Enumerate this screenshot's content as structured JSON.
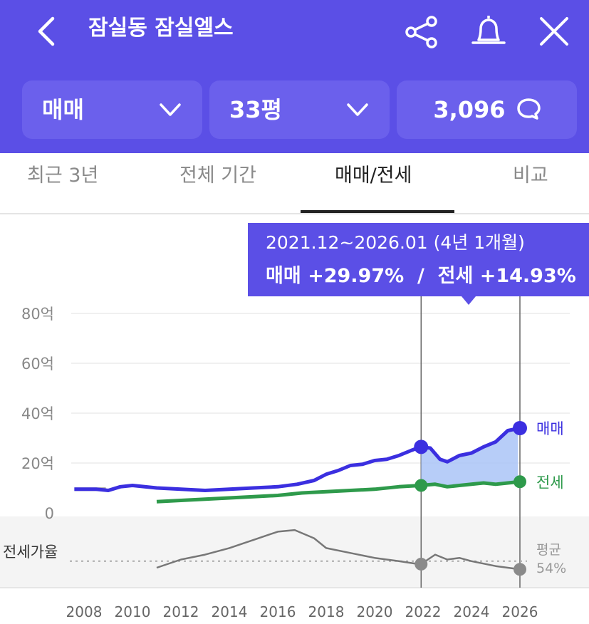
{
  "header": {
    "title": "잠실동 잠실엘스",
    "back_icon": "chevron-left-icon",
    "share_icon": "share-icon",
    "bell_icon": "bell-icon",
    "close_icon": "close-icon",
    "bg_color": "#5b4fe6"
  },
  "selectors": {
    "trade_type": "매매",
    "size": "33평",
    "comment_count": "3,096",
    "comment_icon": "speech-bubble-icon"
  },
  "tabs": [
    {
      "label": "최근 3년",
      "active": false
    },
    {
      "label": "전체 기간",
      "active": false
    },
    {
      "label": "매매/전세",
      "active": true
    },
    {
      "label": "비교",
      "active": false
    }
  ],
  "tooltip": {
    "period": "2021.12~2026.01 (4년 1개월)",
    "change": "매매 +29.97%  /  전세 +14.93%"
  },
  "chart_data": {
    "type": "line",
    "x_ticks": [
      "2008",
      "2010",
      "2012",
      "2014",
      "2016",
      "2018",
      "2020",
      "2022",
      "2024",
      "2026"
    ],
    "y_ticks": [
      "0",
      "20억",
      "40억",
      "60억",
      "80억"
    ],
    "ylim": [
      0,
      80
    ],
    "y_unit": "억",
    "grid": true,
    "series": [
      {
        "name": "매매",
        "color": "#3b2fe0",
        "x": [
          2007.6,
          2008.5,
          2009.0,
          2009.5,
          2010.0,
          2011.0,
          2012.0,
          2013.0,
          2014.0,
          2015.0,
          2016.0,
          2016.8,
          2017.5,
          2018.0,
          2018.5,
          2019.0,
          2019.5,
          2020.0,
          2020.5,
          2021.0,
          2021.5,
          2021.9,
          2022.3,
          2022.7,
          2023.0,
          2023.5,
          2024.0,
          2024.5,
          2025.0,
          2025.5,
          2026.0
        ],
        "values": [
          9.5,
          9.5,
          9.0,
          10.5,
          11.0,
          10.0,
          9.5,
          9.0,
          9.5,
          10.0,
          10.5,
          11.5,
          13.0,
          15.5,
          17.0,
          19.0,
          19.5,
          21.0,
          21.5,
          23.0,
          25.0,
          26.5,
          26.0,
          21.5,
          20.5,
          23.0,
          24.0,
          26.5,
          28.5,
          33.0,
          34.0
        ]
      },
      {
        "name": "전세",
        "color": "#2e9a4b",
        "x": [
          2011.0,
          2012.0,
          2013.0,
          2014.0,
          2015.0,
          2016.0,
          2017.0,
          2018.0,
          2019.0,
          2020.0,
          2021.0,
          2021.9,
          2022.5,
          2023.0,
          2023.5,
          2024.0,
          2024.5,
          2025.0,
          2025.5,
          2026.0
        ],
        "values": [
          4.5,
          5.0,
          5.5,
          6.0,
          6.5,
          7.0,
          8.0,
          8.5,
          9.0,
          9.5,
          10.5,
          11.0,
          11.5,
          10.5,
          11.0,
          11.5,
          12.0,
          11.5,
          12.0,
          12.5
        ]
      }
    ],
    "secondary_panel": {
      "label": "전세가율",
      "avg_label": "평균",
      "avg_value": "54%",
      "avg_pct": 54,
      "x": [
        2011.0,
        2012.0,
        2013.0,
        2014.0,
        2015.0,
        2016.0,
        2016.7,
        2017.5,
        2018.0,
        2019.0,
        2020.0,
        2021.0,
        2021.9,
        2022.5,
        2023.0,
        2023.5,
        2024.0,
        2025.0,
        2026.0
      ],
      "values": [
        50,
        55,
        58,
        62,
        67,
        72,
        73,
        68,
        62,
        59,
        56,
        54,
        52,
        58,
        55,
        56,
        54,
        51,
        49
      ]
    },
    "pre_series": {
      "x": [
        2007.6,
        2008.5,
        2008.9
      ],
      "values": [
        9.5,
        9.5,
        9.5
      ],
      "color": "#999999"
    },
    "range": {
      "start": 2021.92,
      "end": 2026.0
    }
  }
}
